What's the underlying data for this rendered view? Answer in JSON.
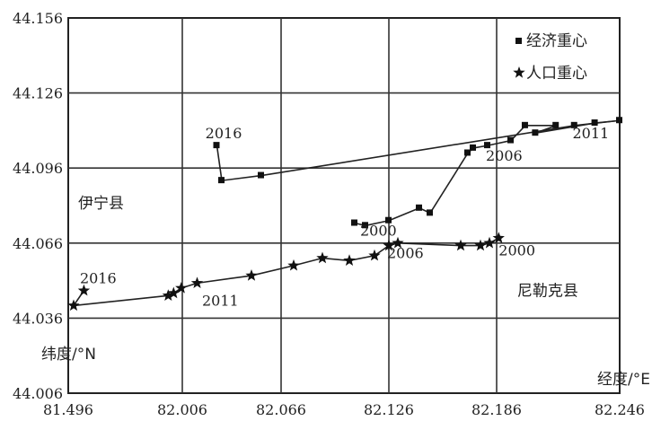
{
  "chart_data": {
    "type": "line",
    "xlabel": "经度/°E",
    "ylabel": "纬度/°N",
    "xlim": [
      81.496,
      82.246
    ],
    "ylim": [
      44.006,
      44.156
    ],
    "x_ticks": [
      "81.496",
      "82.006",
      "82.066",
      "82.126",
      "82.186",
      "82.246"
    ],
    "y_ticks": [
      "44.156",
      "44.126",
      "44.096",
      "44.066",
      "44.036",
      "44.006"
    ],
    "grid": true,
    "legend_position": "top-right",
    "series": [
      {
        "name": "经济重心",
        "marker": "square",
        "points": [
          [
            82.107,
            44.074
          ],
          [
            82.113,
            44.073
          ],
          [
            82.126,
            44.075
          ],
          [
            82.143,
            44.08
          ],
          [
            82.149,
            44.078
          ],
          [
            82.17,
            44.102
          ],
          [
            82.173,
            44.104
          ],
          [
            82.181,
            44.105
          ],
          [
            82.193,
            44.107
          ],
          [
            82.2,
            44.113
          ],
          [
            82.215,
            44.113
          ],
          [
            82.205,
            44.11
          ],
          [
            82.234,
            44.114
          ],
          [
            82.246,
            44.115
          ],
          [
            82.224,
            44.113
          ],
          [
            82.054,
            44.093
          ],
          [
            82.03,
            44.091
          ],
          [
            82.027,
            44.105
          ]
        ]
      },
      {
        "name": "人口重心",
        "marker": "star",
        "points": [
          [
            82.187,
            44.068
          ],
          [
            82.182,
            44.066
          ],
          [
            82.177,
            44.065
          ],
          [
            82.166,
            44.065
          ],
          [
            82.131,
            44.066
          ],
          [
            82.126,
            44.065
          ],
          [
            82.118,
            44.061
          ],
          [
            82.104,
            44.059
          ],
          [
            82.089,
            44.06
          ],
          [
            82.073,
            44.057
          ],
          [
            82.048,
            44.053
          ],
          [
            82.015,
            44.05
          ],
          [
            82.001,
            44.048
          ],
          [
            81.967,
            44.046
          ],
          [
            81.943,
            44.045
          ],
          [
            81.52,
            44.041
          ],
          [
            81.566,
            44.047
          ]
        ]
      }
    ],
    "annotations": [
      {
        "text": "2016",
        "x": 82.02,
        "y": 44.108
      },
      {
        "text": "2006",
        "x": 82.18,
        "y": 44.099
      },
      {
        "text": "2011",
        "x": 82.223,
        "y": 44.108
      },
      {
        "text": "2000",
        "x": 82.11,
        "y": 44.069
      },
      {
        "text": "2016",
        "x": 81.548,
        "y": 44.05
      },
      {
        "text": "2011",
        "x": 82.018,
        "y": 44.041
      },
      {
        "text": "2006",
        "x": 82.125,
        "y": 44.06
      },
      {
        "text": "2000",
        "x": 82.187,
        "y": 44.061
      }
    ],
    "region_labels": [
      {
        "text": "伊宁县",
        "x": 81.54,
        "y": 44.08
      },
      {
        "text": "尼勒克县",
        "x": 82.196,
        "y": 44.045
      }
    ]
  }
}
